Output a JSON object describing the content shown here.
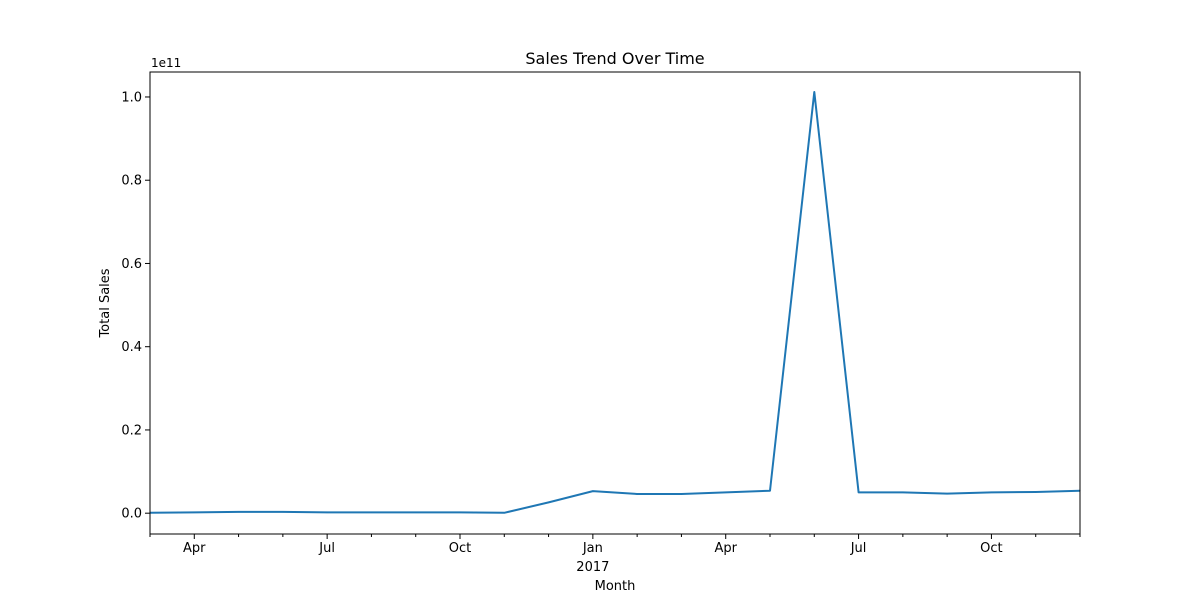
{
  "chart_data": {
    "type": "line",
    "title": "Sales Trend Over Time",
    "xlabel": "Month",
    "ylabel": "Total Sales",
    "y_offset_text": "1e11",
    "grid": false,
    "legend": "none",
    "x_axis": {
      "type": "date",
      "range": [
        "2016-03",
        "2017-12"
      ],
      "major_ticks": [
        {
          "date": "2016-04",
          "label": "Apr"
        },
        {
          "date": "2016-07",
          "label": "Jul"
        },
        {
          "date": "2016-10",
          "label": "Oct"
        },
        {
          "date": "2017-01",
          "label": "Jan",
          "sublabel": "2017"
        },
        {
          "date": "2017-04",
          "label": "Apr"
        },
        {
          "date": "2017-07",
          "label": "Jul"
        },
        {
          "date": "2017-10",
          "label": "Oct"
        }
      ],
      "minor_ticks": [
        "2016-03",
        "2016-05",
        "2016-06",
        "2016-08",
        "2016-09",
        "2016-11",
        "2016-12",
        "2017-02",
        "2017-03",
        "2017-05",
        "2017-06",
        "2017-08",
        "2017-09",
        "2017-11",
        "2017-12"
      ]
    },
    "y_axis": {
      "range": [
        -0.05,
        1.06
      ],
      "scale_note": "values in units of 1e11",
      "ticks": [
        0.0,
        0.2,
        0.4,
        0.6,
        0.8,
        1.0
      ],
      "tick_labels": [
        "0.0",
        "0.2",
        "0.4",
        "0.6",
        "0.8",
        "1.0"
      ]
    },
    "series": [
      {
        "color": "#1f77b4",
        "x": [
          "2016-03",
          "2016-04",
          "2016-05",
          "2016-06",
          "2016-07",
          "2016-08",
          "2016-09",
          "2016-10",
          "2016-11",
          "2016-12",
          "2017-01",
          "2017-02",
          "2017-03",
          "2017-04",
          "2017-05",
          "2017-06",
          "2017-07",
          "2017-08",
          "2017-09",
          "2017-10",
          "2017-11",
          "2017-12"
        ],
        "values": [
          0.001,
          0.002,
          0.003,
          0.003,
          0.002,
          0.002,
          0.002,
          0.002,
          0.001,
          0.026,
          0.053,
          0.046,
          0.046,
          0.05,
          0.054,
          1.012,
          0.05,
          0.05,
          0.047,
          0.05,
          0.051,
          0.054
        ]
      }
    ]
  }
}
